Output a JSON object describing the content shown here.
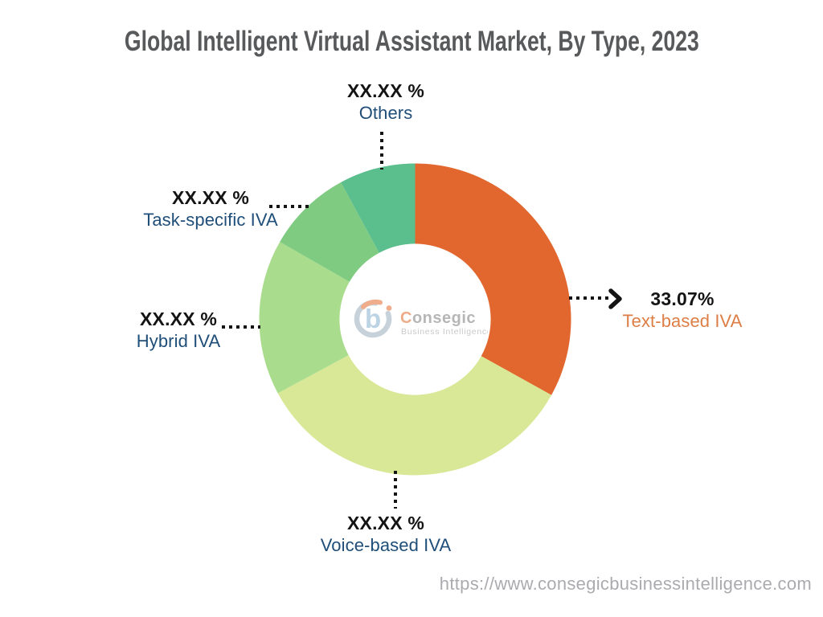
{
  "title": "Global Intelligent Virtual Assistant Market, By Type, 2023",
  "footer": {
    "url": "https://www.consegicbusinessintelligence.com"
  },
  "watermark": {
    "brand_initial": "C",
    "brand_rest": "onsegic",
    "tagline": "Business Intelligence",
    "icon": "consegic-b-logo",
    "brand_accent_color": "#E99A6E",
    "brand_gray_color": "#A7A7A7"
  },
  "callouts": {
    "others": {
      "value": "XX.XX %",
      "label": "Others",
      "color": "#1F4E79"
    },
    "task_specific": {
      "value": "XX.XX %",
      "label": "Task-specific IVA",
      "color": "#1F4E79"
    },
    "hybrid": {
      "value": "XX.XX %",
      "label": "Hybrid IVA",
      "color": "#1F4E79"
    },
    "voice_based": {
      "value": "XX.XX %",
      "label": "Voice-based IVA",
      "color": "#1F4E79"
    },
    "text_based": {
      "value": "33.07%",
      "label": "Text-based IVA",
      "color": "#DD7E46"
    }
  },
  "chart_data": {
    "type": "pie",
    "subtype": "donut",
    "title": "Global Intelligent Virtual Assistant Market, By Type, 2023",
    "unit": "%",
    "direction": "clockwise",
    "start_angle_deg": 0,
    "inner_radius_ratio": 0.485,
    "note": "Only Text-based IVA value is printed (33.07%); other slice percents are masked as XX.XX on the chart and estimated here from arc angles",
    "slices": [
      {
        "label": "Text-based IVA",
        "display_value": "33.07%",
        "percent": 33.07,
        "color": "#E2672E"
      },
      {
        "label": "Voice-based IVA",
        "display_value": "XX.XX %",
        "percent": 34.07,
        "color": "#D9E897"
      },
      {
        "label": "Hybrid IVA",
        "display_value": "XX.XX %",
        "percent": 16.14,
        "color": "#A9DC8C"
      },
      {
        "label": "Task-specific IVA",
        "display_value": "XX.XX %",
        "percent": 8.83,
        "color": "#7FCB82"
      },
      {
        "label": "Others",
        "display_value": "XX.XX %",
        "percent": 7.89,
        "color": "#5ABE8D"
      }
    ]
  },
  "accents": {
    "connector_color": "#141414",
    "title_color": "#58595B",
    "value_color": "#141414",
    "url_color": "#ABABAF"
  }
}
